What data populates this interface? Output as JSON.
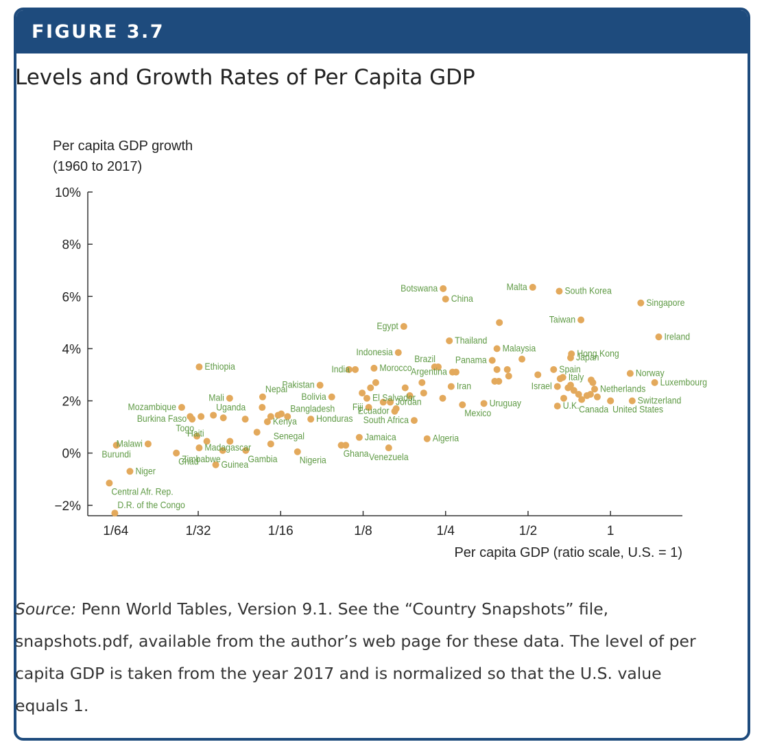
{
  "header": {
    "label": "FIGURE 3.7"
  },
  "title": "Levels and Growth Rates of Per Capita GDP",
  "colors": {
    "header": "#1e4b7d",
    "point": "#e3a95c",
    "label": "#5f9a45",
    "axis": "#333333"
  },
  "source": {
    "prefix": "Source:",
    "text": " Penn World Tables, Version 9.1. See the “Country Snapshots” file, snapshots.pdf, available from the author’s web page for these data. The level of per capita GDP is taken from the year 2017 and is normalized so that the U.S. value equals 1."
  },
  "chart_data": {
    "type": "scatter",
    "x_scale": "log2",
    "ylabel_line1": "Per capita GDP growth",
    "ylabel_line2": "(1960 to 2017)",
    "xlabel": "Per capita GDP (ratio scale, U.S. = 1)",
    "x_ticks": [
      {
        "value": 0.015625,
        "label": "1/64"
      },
      {
        "value": 0.03125,
        "label": "1/32"
      },
      {
        "value": 0.0625,
        "label": "1/16"
      },
      {
        "value": 0.125,
        "label": "1/8"
      },
      {
        "value": 0.25,
        "label": "1/4"
      },
      {
        "value": 0.5,
        "label": "1/2"
      },
      {
        "value": 1,
        "label": "1"
      }
    ],
    "y_ticks": [
      {
        "value": 10,
        "label": "10%"
      },
      {
        "value": 8,
        "label": "8%"
      },
      {
        "value": 6,
        "label": "6%"
      },
      {
        "value": 4,
        "label": "4%"
      },
      {
        "value": 2,
        "label": "2%"
      },
      {
        "value": 0,
        "label": "0%"
      },
      {
        "value": -2,
        "label": "−2%"
      }
    ],
    "xlim": [
      0.01235,
      1.83
    ],
    "ylim": [
      -2.4,
      10
    ],
    "points": [
      {
        "name": "Botswana",
        "x": 0.245,
        "y": 6.3,
        "pos": "left"
      },
      {
        "name": "China",
        "x": 0.25,
        "y": 5.9,
        "pos": "right"
      },
      {
        "name": "Malta",
        "x": 0.52,
        "y": 6.35,
        "pos": "left"
      },
      {
        "name": "South Korea",
        "x": 0.65,
        "y": 6.2,
        "pos": "right"
      },
      {
        "name": "Singapore",
        "x": 1.29,
        "y": 5.75,
        "pos": "right"
      },
      {
        "name": "Taiwan",
        "x": 0.78,
        "y": 5.1,
        "pos": "left"
      },
      {
        "name": "Egypt",
        "x": 0.176,
        "y": 4.85,
        "pos": "left"
      },
      {
        "name": "Ireland",
        "x": 1.5,
        "y": 4.45,
        "pos": "right"
      },
      {
        "name": "Thailand",
        "x": 0.258,
        "y": 4.3,
        "pos": "right"
      },
      {
        "name": "Malaysia",
        "x": 0.385,
        "y": 4.0,
        "pos": "right"
      },
      {
        "name": "Indonesia",
        "x": 0.168,
        "y": 3.85,
        "pos": "left"
      },
      {
        "name": "Hong Kong",
        "x": 0.72,
        "y": 3.8,
        "pos": "right"
      },
      {
        "name": "Japan",
        "x": 0.715,
        "y": 3.65,
        "pos": "right"
      },
      {
        "name": "Panama",
        "x": 0.37,
        "y": 3.55,
        "pos": "left"
      },
      {
        "name": "Brazil",
        "x": 0.235,
        "y": 3.3,
        "pos": "top-left"
      },
      {
        "name": "Ethiopia",
        "x": 0.0315,
        "y": 3.3,
        "pos": "right"
      },
      {
        "name": "India",
        "x": 0.117,
        "y": 3.2,
        "pos": "left"
      },
      {
        "name": "Morocco",
        "x": 0.137,
        "y": 3.25,
        "pos": "right"
      },
      {
        "name": "Spain",
        "x": 0.62,
        "y": 3.2,
        "pos": "right"
      },
      {
        "name": "Argentina",
        "x": 0.265,
        "y": 3.1,
        "pos": "left"
      },
      {
        "name": "Norway",
        "x": 1.18,
        "y": 3.05,
        "pos": "right"
      },
      {
        "name": "Italy",
        "x": 0.67,
        "y": 2.9,
        "pos": "right"
      },
      {
        "name": "Pakistan",
        "x": 0.087,
        "y": 2.6,
        "pos": "left"
      },
      {
        "name": "Luxembourg",
        "x": 1.45,
        "y": 2.7,
        "pos": "right"
      },
      {
        "name": "Nepal",
        "x": 0.0537,
        "y": 2.15,
        "pos": "top-right"
      },
      {
        "name": "Iran",
        "x": 0.262,
        "y": 2.55,
        "pos": "right"
      },
      {
        "name": "Israel",
        "x": 0.64,
        "y": 2.55,
        "pos": "left"
      },
      {
        "name": "Netherlands",
        "x": 0.875,
        "y": 2.45,
        "pos": "right"
      },
      {
        "name": "Mali",
        "x": 0.0407,
        "y": 2.1,
        "pos": "left"
      },
      {
        "name": "El Salvador",
        "x": 0.129,
        "y": 2.1,
        "pos": "right"
      },
      {
        "name": "Bolivia",
        "x": 0.096,
        "y": 2.15,
        "pos": "left"
      },
      {
        "name": "Switzerland",
        "x": 1.2,
        "y": 2.0,
        "pos": "right"
      },
      {
        "name": "Jordan",
        "x": 0.157,
        "y": 1.95,
        "pos": "right"
      },
      {
        "name": "Uruguay",
        "x": 0.345,
        "y": 1.9,
        "pos": "right"
      },
      {
        "name": "Canada",
        "x": 1.0,
        "y": 2.0,
        "pos": "bottom-left"
      },
      {
        "name": "U.K.",
        "x": 0.64,
        "y": 1.8,
        "pos": "right"
      },
      {
        "name": "United States",
        "x": 1.0,
        "y": 2.0,
        "pos": "bottom-right"
      },
      {
        "name": "Mozambique",
        "x": 0.0272,
        "y": 1.75,
        "pos": "left"
      },
      {
        "name": "Uganda",
        "x": 0.0355,
        "y": 1.45,
        "pos": "top-right"
      },
      {
        "name": "Fiji",
        "x": 0.131,
        "y": 1.75,
        "pos": "left"
      },
      {
        "name": "Mexico",
        "x": 0.288,
        "y": 1.85,
        "pos": "bottom-right"
      },
      {
        "name": "Bangladesh",
        "x": 0.0662,
        "y": 1.4,
        "pos": "top-right"
      },
      {
        "name": "Ecuador",
        "x": 0.163,
        "y": 1.6,
        "pos": "left"
      },
      {
        "name": "Burkina Faso",
        "x": 0.0297,
        "y": 1.3,
        "pos": "left"
      },
      {
        "name": "Honduras",
        "x": 0.0805,
        "y": 1.3,
        "pos": "right"
      },
      {
        "name": "South Africa",
        "x": 0.192,
        "y": 1.25,
        "pos": "left"
      },
      {
        "name": "Kenya",
        "x": 0.0559,
        "y": 1.2,
        "pos": "right"
      },
      {
        "name": "Togo",
        "x": 0.0309,
        "y": 0.65,
        "pos": "top-left"
      },
      {
        "name": "Haiti",
        "x": 0.0336,
        "y": 0.45,
        "pos": "top-left"
      },
      {
        "name": "Malawi",
        "x": 0.0205,
        "y": 0.35,
        "pos": "left"
      },
      {
        "name": "Senegal",
        "x": 0.0575,
        "y": 0.35,
        "pos": "top-right"
      },
      {
        "name": "Jamaica",
        "x": 0.121,
        "y": 0.6,
        "pos": "right"
      },
      {
        "name": "Algeria",
        "x": 0.214,
        "y": 0.55,
        "pos": "right"
      },
      {
        "name": "Madagascar",
        "x": 0.0315,
        "y": 0.2,
        "pos": "right"
      },
      {
        "name": "Ghana",
        "x": 0.104,
        "y": 0.3,
        "pos": "bottom-right"
      },
      {
        "name": "Gambia",
        "x": 0.0466,
        "y": 0.1,
        "pos": "bottom-right"
      },
      {
        "name": "Burundi",
        "x": 0.0157,
        "y": 0.3,
        "pos": "bottom"
      },
      {
        "name": "Zimbabwe",
        "x": 0.0384,
        "y": 0.1,
        "pos": "bottom-left"
      },
      {
        "name": "Nigeria",
        "x": 0.072,
        "y": 0.05,
        "pos": "bottom-right"
      },
      {
        "name": "Venezuela",
        "x": 0.155,
        "y": 0.2,
        "pos": "bottom"
      },
      {
        "name": "Chad",
        "x": 0.026,
        "y": 0.0,
        "pos": "bottom-right"
      },
      {
        "name": "Guinea",
        "x": 0.0362,
        "y": -0.45,
        "pos": "right"
      },
      {
        "name": "Niger",
        "x": 0.0176,
        "y": -0.7,
        "pos": "right"
      },
      {
        "name": "Central Afr. Rep.",
        "x": 0.0148,
        "y": -1.15,
        "pos": "bottom-right"
      },
      {
        "name": "D.R. of the Congo",
        "x": 0.0155,
        "y": -2.3,
        "pos": "top-right"
      },
      {
        "name": "",
        "x": 0.0292,
        "y": 1.4,
        "pos": "none"
      },
      {
        "name": "",
        "x": 0.032,
        "y": 1.4,
        "pos": "none"
      },
      {
        "name": "",
        "x": 0.0386,
        "y": 1.35,
        "pos": "none"
      },
      {
        "name": "",
        "x": 0.0464,
        "y": 1.3,
        "pos": "none"
      },
      {
        "name": "",
        "x": 0.0535,
        "y": 1.75,
        "pos": "none"
      },
      {
        "name": "",
        "x": 0.0575,
        "y": 1.4,
        "pos": "none"
      },
      {
        "name": "",
        "x": 0.0612,
        "y": 1.45,
        "pos": "none"
      },
      {
        "name": "",
        "x": 0.0628,
        "y": 1.5,
        "pos": "none"
      },
      {
        "name": "",
        "x": 0.0512,
        "y": 0.8,
        "pos": "none"
      },
      {
        "name": "",
        "x": 0.0408,
        "y": 0.45,
        "pos": "none"
      },
      {
        "name": "",
        "x": 0.108,
        "y": 0.3,
        "pos": "none"
      },
      {
        "name": "",
        "x": 0.111,
        "y": 3.2,
        "pos": "none"
      },
      {
        "name": "",
        "x": 0.124,
        "y": 2.3,
        "pos": "none"
      },
      {
        "name": "",
        "x": 0.133,
        "y": 2.5,
        "pos": "none"
      },
      {
        "name": "",
        "x": 0.139,
        "y": 2.7,
        "pos": "none"
      },
      {
        "name": "",
        "x": 0.148,
        "y": 1.95,
        "pos": "none"
      },
      {
        "name": "",
        "x": 0.165,
        "y": 1.7,
        "pos": "none"
      },
      {
        "name": "",
        "x": 0.178,
        "y": 2.5,
        "pos": "none"
      },
      {
        "name": "",
        "x": 0.185,
        "y": 2.2,
        "pos": "none"
      },
      {
        "name": "",
        "x": 0.205,
        "y": 2.7,
        "pos": "none"
      },
      {
        "name": "",
        "x": 0.208,
        "y": 2.3,
        "pos": "none"
      },
      {
        "name": "",
        "x": 0.228,
        "y": 3.3,
        "pos": "none"
      },
      {
        "name": "",
        "x": 0.244,
        "y": 2.1,
        "pos": "none"
      },
      {
        "name": "",
        "x": 0.273,
        "y": 3.1,
        "pos": "none"
      },
      {
        "name": "",
        "x": 0.378,
        "y": 2.75,
        "pos": "none"
      },
      {
        "name": "",
        "x": 0.391,
        "y": 2.75,
        "pos": "none"
      },
      {
        "name": "",
        "x": 0.385,
        "y": 3.2,
        "pos": "none"
      },
      {
        "name": "",
        "x": 0.42,
        "y": 3.2,
        "pos": "none"
      },
      {
        "name": "",
        "x": 0.425,
        "y": 2.95,
        "pos": "none"
      },
      {
        "name": "",
        "x": 0.393,
        "y": 5.0,
        "pos": "none"
      },
      {
        "name": "",
        "x": 0.475,
        "y": 3.6,
        "pos": "none"
      },
      {
        "name": "",
        "x": 0.543,
        "y": 3.0,
        "pos": "none"
      },
      {
        "name": "",
        "x": 0.655,
        "y": 2.85,
        "pos": "none"
      },
      {
        "name": "",
        "x": 0.7,
        "y": 2.5,
        "pos": "none"
      },
      {
        "name": "",
        "x": 0.675,
        "y": 2.1,
        "pos": "none"
      },
      {
        "name": "",
        "x": 0.715,
        "y": 2.6,
        "pos": "none"
      },
      {
        "name": "",
        "x": 0.735,
        "y": 2.4,
        "pos": "none"
      },
      {
        "name": "",
        "x": 0.765,
        "y": 2.25,
        "pos": "none"
      },
      {
        "name": "",
        "x": 0.785,
        "y": 2.05,
        "pos": "none"
      },
      {
        "name": "",
        "x": 0.82,
        "y": 2.2,
        "pos": "none"
      },
      {
        "name": "",
        "x": 0.845,
        "y": 2.25,
        "pos": "none"
      },
      {
        "name": "",
        "x": 0.85,
        "y": 2.8,
        "pos": "none"
      },
      {
        "name": "",
        "x": 0.862,
        "y": 2.7,
        "pos": "none"
      },
      {
        "name": "",
        "x": 0.895,
        "y": 2.15,
        "pos": "none"
      }
    ]
  }
}
